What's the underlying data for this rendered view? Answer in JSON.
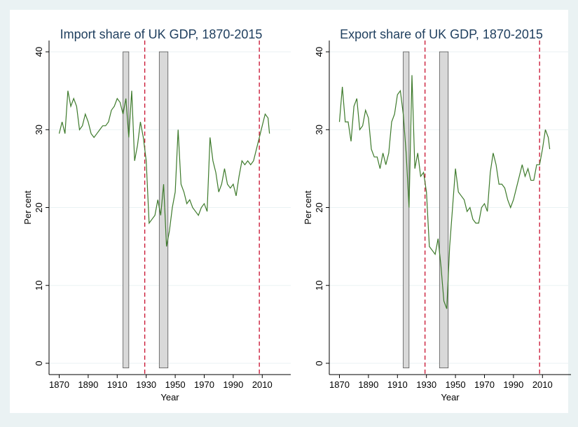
{
  "chart_data": [
    {
      "type": "line",
      "title": "Import share of UK GDP, 1870-2015",
      "xlabel": "Year",
      "ylabel": "Per cent",
      "x": [
        1870,
        1872,
        1874,
        1876,
        1878,
        1880,
        1882,
        1884,
        1886,
        1888,
        1890,
        1892,
        1894,
        1896,
        1898,
        1900,
        1902,
        1904,
        1906,
        1908,
        1910,
        1912,
        1914,
        1916,
        1918,
        1920,
        1922,
        1924,
        1926,
        1928,
        1930,
        1932,
        1934,
        1936,
        1938,
        1940,
        1942,
        1944,
        1946,
        1948,
        1950,
        1952,
        1954,
        1956,
        1958,
        1960,
        1962,
        1964,
        1966,
        1968,
        1970,
        1972,
        1974,
        1976,
        1978,
        1980,
        1982,
        1984,
        1986,
        1988,
        1990,
        1992,
        1994,
        1996,
        1998,
        2000,
        2002,
        2004,
        2006,
        2008,
        2010,
        2012,
        2014,
        2015
      ],
      "values": [
        29.5,
        31,
        29.5,
        35,
        33,
        34,
        33,
        30,
        30.5,
        32,
        31,
        29.5,
        29,
        29.5,
        30,
        30.5,
        30.5,
        31,
        32.5,
        33,
        34,
        33.5,
        32,
        34,
        29,
        35,
        26,
        28,
        31,
        29,
        26,
        18,
        18.5,
        19,
        21,
        19,
        23,
        15,
        17,
        20,
        22,
        30,
        23,
        22,
        20.5,
        21,
        20,
        19.5,
        19,
        20,
        20.5,
        19.5,
        29,
        26,
        24.5,
        22,
        23,
        25,
        23,
        22.5,
        23,
        21.5,
        24,
        26,
        25.5,
        26,
        25.5,
        26,
        27.5,
        29,
        30.5,
        32,
        31.5,
        29.5
      ],
      "color": "#3d7a2b",
      "xlim": [
        1863,
        2020
      ],
      "ylim": [
        -1,
        41
      ],
      "xticks": [
        1870,
        1890,
        1910,
        1930,
        1950,
        1970,
        1990,
        2010
      ],
      "yticks": [
        0,
        10,
        20,
        30,
        40
      ],
      "grid": true,
      "shaded_periods": [
        [
          1914,
          1918
        ],
        [
          1939,
          1945
        ]
      ],
      "vlines": [
        1929,
        2008
      ]
    },
    {
      "type": "line",
      "title": "Export share of UK GDP, 1870-2015",
      "xlabel": "Year",
      "ylabel": "Per cent",
      "x": [
        1870,
        1872,
        1874,
        1876,
        1878,
        1880,
        1882,
        1884,
        1886,
        1888,
        1890,
        1892,
        1894,
        1896,
        1898,
        1900,
        1902,
        1904,
        1906,
        1908,
        1910,
        1912,
        1914,
        1916,
        1918,
        1920,
        1922,
        1924,
        1926,
        1928,
        1930,
        1932,
        1934,
        1936,
        1938,
        1940,
        1942,
        1944,
        1946,
        1948,
        1950,
        1952,
        1954,
        1956,
        1958,
        1960,
        1962,
        1964,
        1966,
        1968,
        1970,
        1972,
        1974,
        1976,
        1978,
        1980,
        1982,
        1984,
        1986,
        1988,
        1990,
        1992,
        1994,
        1996,
        1998,
        2000,
        2002,
        2004,
        2006,
        2008,
        2010,
        2012,
        2014,
        2015
      ],
      "values": [
        31,
        35.5,
        31,
        31,
        28.5,
        33,
        34,
        30,
        30.5,
        32.5,
        31.5,
        27.5,
        26.5,
        26.5,
        25,
        27,
        25.5,
        27,
        31,
        32,
        34.5,
        35,
        32,
        27,
        20,
        37,
        25,
        27,
        24,
        24.5,
        22,
        15,
        14.5,
        14,
        16,
        12.5,
        8,
        7,
        15,
        20,
        25,
        22,
        21.5,
        21,
        19.5,
        20,
        18.5,
        18,
        18,
        20,
        20.5,
        19.5,
        24.5,
        27,
        25.5,
        23,
        23,
        22.5,
        21,
        20,
        21,
        22.5,
        24,
        25.5,
        24,
        25,
        23.5,
        23.5,
        25.5,
        25.5,
        27.5,
        30,
        29,
        27.5
      ],
      "color": "#3d7a2b",
      "xlim": [
        1863,
        2020
      ],
      "ylim": [
        -1,
        41
      ],
      "xticks": [
        1870,
        1890,
        1910,
        1930,
        1950,
        1970,
        1990,
        2010
      ],
      "yticks": [
        0,
        10,
        20,
        30,
        40
      ],
      "grid": true,
      "shaded_periods": [
        [
          1914,
          1918
        ],
        [
          1939,
          1945
        ]
      ],
      "vlines": [
        1929,
        2008
      ]
    }
  ]
}
